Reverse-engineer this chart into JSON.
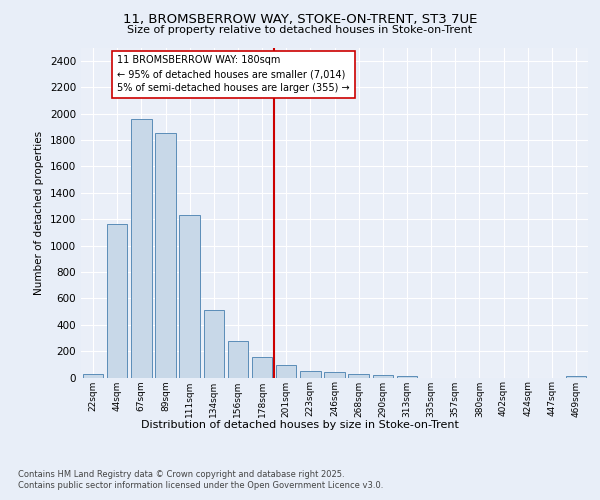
{
  "title": "11, BROMSBERROW WAY, STOKE-ON-TRENT, ST3 7UE",
  "subtitle": "Size of property relative to detached houses in Stoke-on-Trent",
  "xlabel": "Distribution of detached houses by size in Stoke-on-Trent",
  "ylabel": "Number of detached properties",
  "categories": [
    "22sqm",
    "44sqm",
    "67sqm",
    "89sqm",
    "111sqm",
    "134sqm",
    "156sqm",
    "178sqm",
    "201sqm",
    "223sqm",
    "246sqm",
    "268sqm",
    "290sqm",
    "313sqm",
    "335sqm",
    "357sqm",
    "380sqm",
    "402sqm",
    "424sqm",
    "447sqm",
    "469sqm"
  ],
  "values": [
    30,
    1160,
    1960,
    1850,
    1230,
    510,
    275,
    155,
    95,
    50,
    40,
    25,
    20,
    15,
    0,
    0,
    0,
    0,
    0,
    0,
    15
  ],
  "bar_color": "#c8d8e8",
  "bar_edge_color": "#5b8db8",
  "vline_color": "#cc0000",
  "annotation_text": "11 BROMSBERROW WAY: 180sqm\n← 95% of detached houses are smaller (7,014)\n5% of semi-detached houses are larger (355) →",
  "ylim": [
    0,
    2500
  ],
  "yticks": [
    0,
    200,
    400,
    600,
    800,
    1000,
    1200,
    1400,
    1600,
    1800,
    2000,
    2200,
    2400
  ],
  "bg_color": "#e8eef8",
  "plot_bg_color": "#eaeff8",
  "grid_color": "#ffffff",
  "footer_line1": "Contains HM Land Registry data © Crown copyright and database right 2025.",
  "footer_line2": "Contains public sector information licensed under the Open Government Licence v3.0."
}
